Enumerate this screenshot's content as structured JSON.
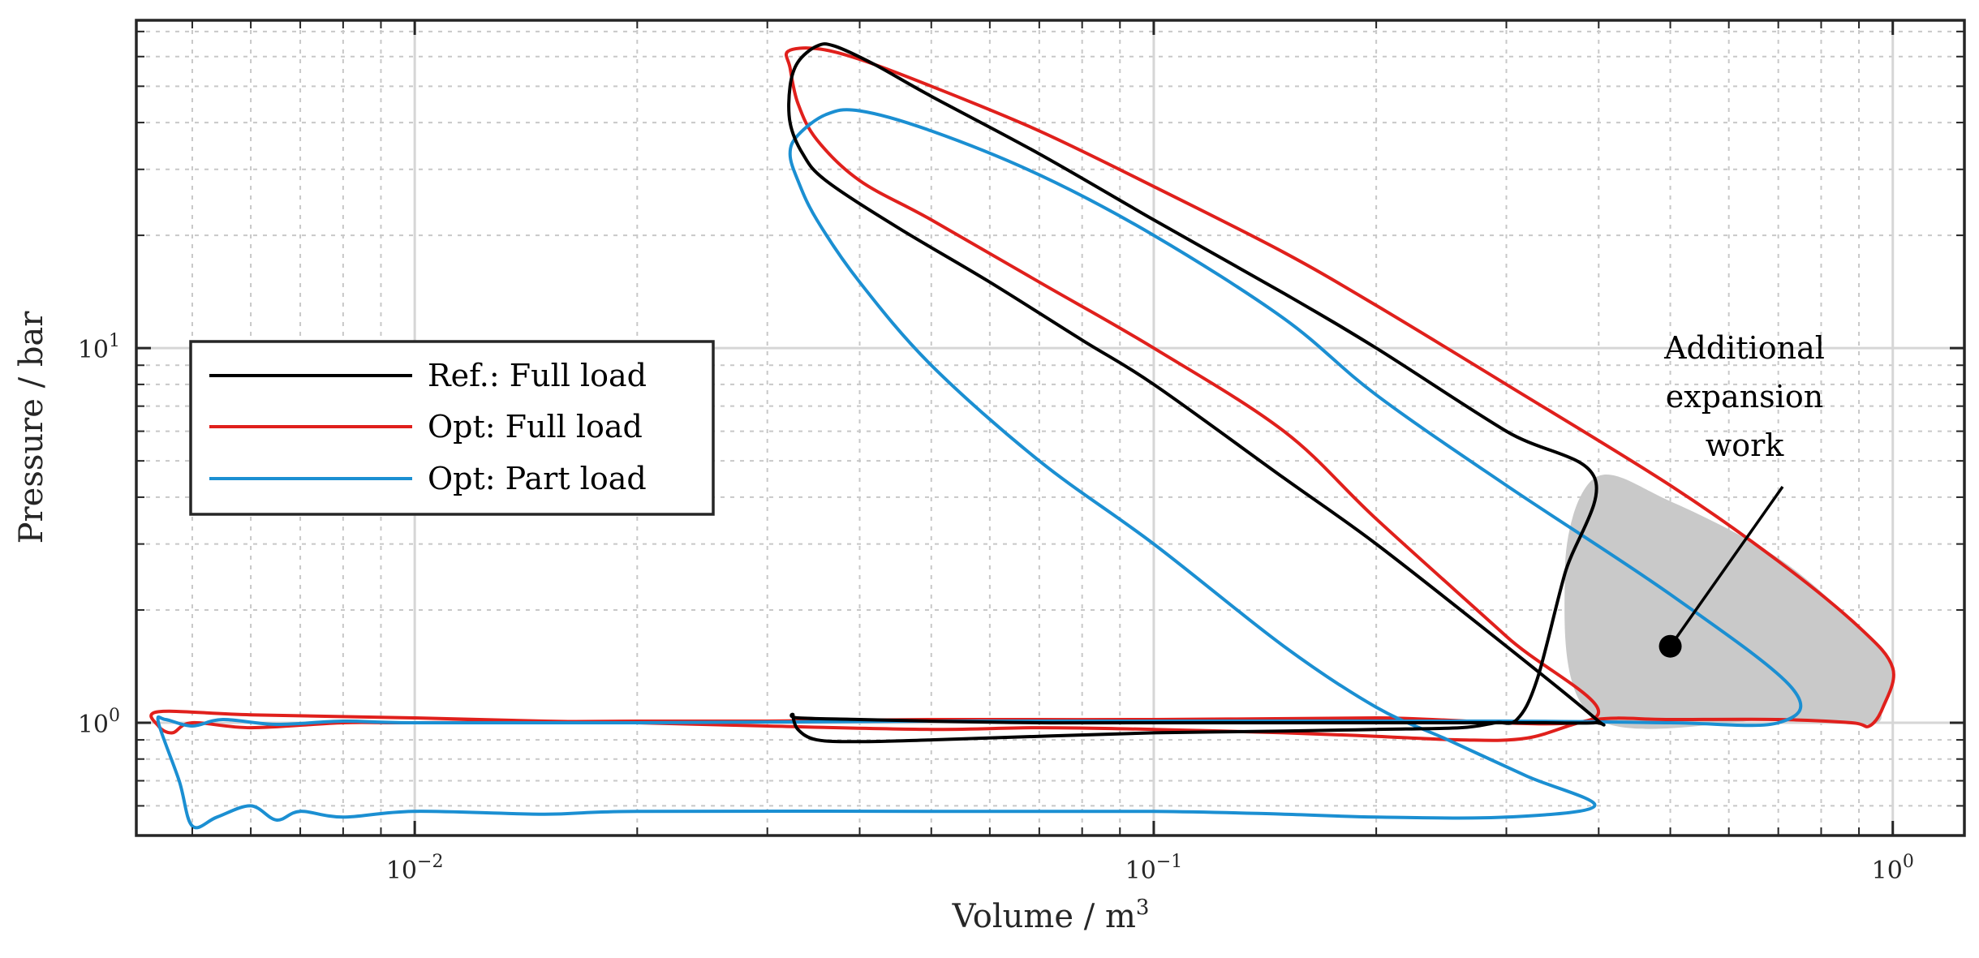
{
  "chart_data": {
    "type": "line",
    "title": "",
    "xlabel": "Volume / m",
    "xlabel_sup": "3",
    "ylabel": "Pressure / bar",
    "xscale": "log",
    "yscale": "log",
    "xlim": [
      0.0042,
      1.25
    ],
    "ylim": [
      0.5,
      75
    ],
    "grid": true,
    "x_ticks": [
      {
        "value": 0.01,
        "base": "10",
        "exp": "−2"
      },
      {
        "value": 0.1,
        "base": "10",
        "exp": "−1"
      },
      {
        "value": 1,
        "base": "10",
        "exp": "0"
      }
    ],
    "y_ticks": [
      {
        "value": 1,
        "base": "10",
        "exp": "0"
      },
      {
        "value": 10,
        "base": "10",
        "exp": "1"
      }
    ],
    "legend": {
      "placement": "middle-left",
      "entries": [
        {
          "label": "Ref.: Full load",
          "color": "#000000"
        },
        {
          "label": "Opt: Full load",
          "color": "#e0201c"
        },
        {
          "label": "Opt: Part load",
          "color": "#1b8fd2"
        }
      ]
    },
    "series": [
      {
        "name": "Ref.: Full load",
        "color": "#000000",
        "points": [
          [
            0.395,
            1.0
          ],
          [
            0.33,
            1.0
          ],
          [
            0.26,
            1.0
          ],
          [
            0.2,
            1.0
          ],
          [
            0.15,
            1.0
          ],
          [
            0.1,
            1.0
          ],
          [
            0.07,
            1.0
          ],
          [
            0.05,
            1.01
          ],
          [
            0.04,
            1.02
          ],
          [
            0.033,
            1.03
          ],
          [
            0.0325,
            1.05
          ],
          [
            0.033,
            0.96
          ],
          [
            0.035,
            0.9
          ],
          [
            0.04,
            0.89
          ],
          [
            0.05,
            0.9
          ],
          [
            0.07,
            0.92
          ],
          [
            0.1,
            0.94
          ],
          [
            0.15,
            0.95
          ],
          [
            0.2,
            0.96
          ],
          [
            0.26,
            0.97
          ],
          [
            0.29,
            1.0
          ],
          [
            0.31,
            1.02
          ],
          [
            0.33,
            1.3
          ],
          [
            0.36,
            2.5
          ],
          [
            0.395,
            4.5
          ],
          [
            0.3,
            6.0
          ],
          [
            0.2,
            10.0
          ],
          [
            0.15,
            14.0
          ],
          [
            0.1,
            22.0
          ],
          [
            0.07,
            33.0
          ],
          [
            0.05,
            47.0
          ],
          [
            0.042,
            57.0
          ],
          [
            0.037,
            64.0
          ],
          [
            0.035,
            64.0
          ],
          [
            0.033,
            58.0
          ],
          [
            0.0322,
            50.0
          ],
          [
            0.0322,
            40.0
          ],
          [
            0.0335,
            33.0
          ],
          [
            0.036,
            28.0
          ],
          [
            0.045,
            21.0
          ],
          [
            0.06,
            15.0
          ],
          [
            0.08,
            10.5
          ],
          [
            0.1,
            8.0
          ],
          [
            0.15,
            4.5
          ],
          [
            0.2,
            3.0
          ],
          [
            0.3,
            1.6
          ],
          [
            0.395,
            1.03
          ]
        ]
      },
      {
        "name": "Opt: Full load",
        "color": "#e0201c",
        "points": [
          [
            0.0045,
            1.07
          ],
          [
            0.006,
            1.05
          ],
          [
            0.01,
            1.03
          ],
          [
            0.015,
            1.01
          ],
          [
            0.02,
            1.0
          ],
          [
            0.03,
            0.98
          ],
          [
            0.05,
            0.96
          ],
          [
            0.07,
            0.97
          ],
          [
            0.1,
            0.96
          ],
          [
            0.15,
            0.94
          ],
          [
            0.2,
            0.92
          ],
          [
            0.26,
            0.9
          ],
          [
            0.32,
            0.91
          ],
          [
            0.395,
            1.02
          ],
          [
            0.5,
            1.02
          ],
          [
            0.7,
            1.02
          ],
          [
            0.88,
            1.0
          ],
          [
            0.93,
            0.98
          ],
          [
            0.97,
            1.1
          ],
          [
            1.0,
            1.4
          ],
          [
            0.9,
            1.8
          ],
          [
            0.7,
            2.7
          ],
          [
            0.5,
            4.3
          ],
          [
            0.3,
            8.0
          ],
          [
            0.2,
            13.0
          ],
          [
            0.15,
            18.0
          ],
          [
            0.1,
            27.0
          ],
          [
            0.07,
            38.0
          ],
          [
            0.05,
            50.0
          ],
          [
            0.04,
            59.0
          ],
          [
            0.035,
            63.0
          ],
          [
            0.032,
            62.0
          ],
          [
            0.0322,
            56.0
          ],
          [
            0.033,
            45.0
          ],
          [
            0.035,
            36.0
          ],
          [
            0.04,
            28.0
          ],
          [
            0.05,
            22.0
          ],
          [
            0.07,
            15.0
          ],
          [
            0.1,
            10.0
          ],
          [
            0.15,
            6.0
          ],
          [
            0.2,
            3.5
          ],
          [
            0.3,
            1.7
          ],
          [
            0.395,
            1.03
          ],
          [
            0.2,
            1.03
          ],
          [
            0.1,
            1.02
          ],
          [
            0.05,
            1.02
          ],
          [
            0.03,
            1.01
          ],
          [
            0.02,
            1.01
          ],
          [
            0.01,
            1.0
          ],
          [
            0.008,
            1.0
          ],
          [
            0.006,
            0.97
          ],
          [
            0.005,
            1.0
          ],
          [
            0.0047,
            0.94
          ],
          [
            0.0045,
            0.98
          ]
        ]
      },
      {
        "name": "Opt: Part load",
        "color": "#1b8fd2",
        "points": [
          [
            0.0045,
            1.0
          ],
          [
            0.0048,
            0.7
          ],
          [
            0.005,
            0.53
          ],
          [
            0.0054,
            0.56
          ],
          [
            0.006,
            0.6
          ],
          [
            0.0065,
            0.55
          ],
          [
            0.007,
            0.58
          ],
          [
            0.008,
            0.56
          ],
          [
            0.01,
            0.58
          ],
          [
            0.015,
            0.57
          ],
          [
            0.02,
            0.58
          ],
          [
            0.05,
            0.58
          ],
          [
            0.1,
            0.58
          ],
          [
            0.15,
            0.57
          ],
          [
            0.2,
            0.56
          ],
          [
            0.3,
            0.56
          ],
          [
            0.395,
            0.6
          ],
          [
            0.32,
            0.72
          ],
          [
            0.25,
            0.9
          ],
          [
            0.2,
            1.1
          ],
          [
            0.15,
            1.6
          ],
          [
            0.1,
            3.0
          ],
          [
            0.07,
            5.0
          ],
          [
            0.05,
            9.0
          ],
          [
            0.04,
            15.0
          ],
          [
            0.035,
            22.0
          ],
          [
            0.033,
            28.0
          ],
          [
            0.0322,
            33.0
          ],
          [
            0.033,
            37.0
          ],
          [
            0.036,
            42.0
          ],
          [
            0.04,
            43.0
          ],
          [
            0.05,
            38.0
          ],
          [
            0.07,
            29.0
          ],
          [
            0.1,
            20.0
          ],
          [
            0.15,
            12.0
          ],
          [
            0.2,
            7.5
          ],
          [
            0.3,
            4.3
          ],
          [
            0.5,
            2.2
          ],
          [
            0.73,
            1.24
          ],
          [
            0.7,
            1.0
          ],
          [
            0.5,
            1.0
          ],
          [
            0.3,
            1.01
          ],
          [
            0.1,
            1.01
          ],
          [
            0.05,
            1.01
          ],
          [
            0.02,
            1.0
          ],
          [
            0.01,
            1.0
          ],
          [
            0.008,
            1.01
          ],
          [
            0.0065,
            0.99
          ],
          [
            0.0055,
            1.02
          ],
          [
            0.005,
            0.98
          ],
          [
            0.0046,
            1.02
          ]
        ]
      }
    ],
    "shaded_region": {
      "name": "Additional expansion work",
      "color": "#c9c9c9",
      "points": [
        [
          0.395,
          4.5
        ],
        [
          0.5,
          3.9
        ],
        [
          0.7,
          2.75
        ],
        [
          0.9,
          1.8
        ],
        [
          1.0,
          1.4
        ],
        [
          0.97,
          1.1
        ],
        [
          0.93,
          0.99
        ],
        [
          0.7,
          1.02
        ],
        [
          0.395,
          1.03
        ],
        [
          0.36,
          2.5
        ]
      ]
    },
    "annotation": {
      "lines": [
        "Additional",
        "expansion",
        "work"
      ],
      "marker": [
        0.5,
        1.6
      ]
    }
  }
}
